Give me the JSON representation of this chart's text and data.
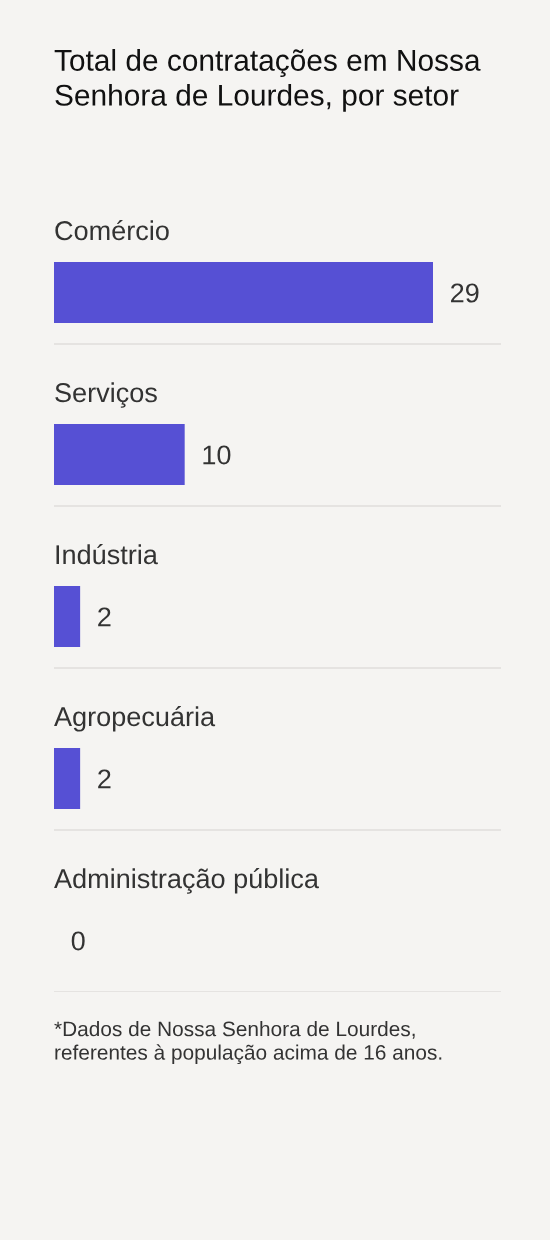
{
  "chart_data": {
    "type": "bar",
    "orientation": "horizontal",
    "title": "Total de contratações em Nossa Senhora de Lourdes, por setor",
    "categories": [
      "Comércio",
      "Serviços",
      "Indústria",
      "Agropecuária",
      "Administração pública"
    ],
    "values": [
      29,
      10,
      2,
      2,
      0
    ],
    "color": "#5650d4",
    "data_labels": true,
    "grid": "y",
    "tick_labels": "y",
    "annotations": [
      "*Dados de Nossa Senhora de Lourdes,\nreferentes à população acima de 16 anos."
    ]
  }
}
